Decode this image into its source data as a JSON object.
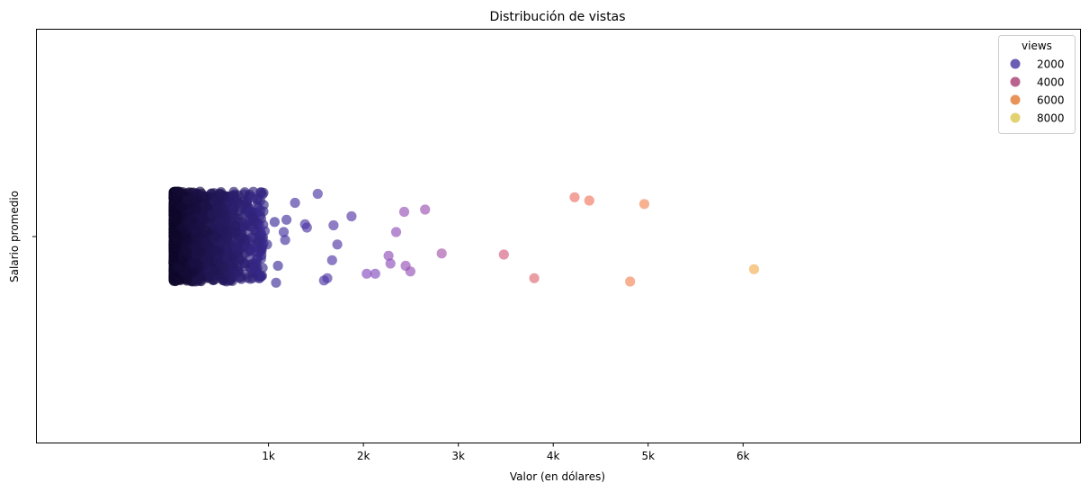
{
  "chart_data": {
    "type": "scatter",
    "title": "Distribución de vistas",
    "xlabel": "Valor (en dólares)",
    "ylabel": "Salario promedio",
    "xlim": [
      -1450,
      9550
    ],
    "x_ticks": [
      {
        "value": 1000,
        "label": "1k"
      },
      {
        "value": 2000,
        "label": "2k"
      },
      {
        "value": 3000,
        "label": "3k"
      },
      {
        "value": 4000,
        "label": "4k"
      },
      {
        "value": 5000,
        "label": "5k"
      },
      {
        "value": 6000,
        "label": "6k"
      }
    ],
    "y_category": "",
    "grid": false,
    "legend": {
      "title": "views",
      "placement": "top-right",
      "entries": [
        {
          "label": "2000",
          "color": "#6b5fb5"
        },
        {
          "label": "4000",
          "color": "#b9648f"
        },
        {
          "label": "6000",
          "color": "#e8935a"
        },
        {
          "label": "8000",
          "color": "#e3d272"
        }
      ]
    },
    "color_scale": {
      "name": "plasma-like",
      "domain": [
        0,
        8000
      ],
      "stops": [
        "#0d0624",
        "#3f2f9c",
        "#8a4fc0",
        "#d05a86",
        "#f47a5c",
        "#f2b04f",
        "#e8e07a"
      ]
    },
    "point_opacity": 0.65,
    "points": [
      {
        "x": 1518,
        "jitter": 0.38,
        "views": 1600
      },
      {
        "x": 1280,
        "jitter": 0.3,
        "views": 1500
      },
      {
        "x": 1875,
        "jitter": 0.18,
        "views": 1700
      },
      {
        "x": 1405,
        "jitter": 0.08,
        "views": 1550
      },
      {
        "x": 1385,
        "jitter": 0.11,
        "views": 1550
      },
      {
        "x": 1685,
        "jitter": 0.1,
        "views": 1650
      },
      {
        "x": 1725,
        "jitter": -0.07,
        "views": 1650
      },
      {
        "x": 1670,
        "jitter": -0.21,
        "views": 1650
      },
      {
        "x": 1620,
        "jitter": -0.37,
        "views": 1600
      },
      {
        "x": 1585,
        "jitter": -0.39,
        "views": 1600
      },
      {
        "x": 1190,
        "jitter": 0.15,
        "views": 1400
      },
      {
        "x": 1175,
        "jitter": -0.03,
        "views": 1400
      },
      {
        "x": 1160,
        "jitter": 0.04,
        "views": 1400
      },
      {
        "x": 1065,
        "jitter": 0.13,
        "views": 1300
      },
      {
        "x": 1100,
        "jitter": -0.26,
        "views": 1300
      },
      {
        "x": 1080,
        "jitter": -0.41,
        "views": 1300
      },
      {
        "x": 960,
        "jitter": 0.05,
        "views": 1200
      },
      {
        "x": 985,
        "jitter": -0.07,
        "views": 1200
      },
      {
        "x": 2345,
        "jitter": 0.04,
        "views": 2800
      },
      {
        "x": 2430,
        "jitter": 0.22,
        "views": 2900
      },
      {
        "x": 2650,
        "jitter": 0.24,
        "views": 3000
      },
      {
        "x": 2825,
        "jitter": -0.15,
        "views": 3200
      },
      {
        "x": 2265,
        "jitter": -0.17,
        "views": 2800
      },
      {
        "x": 2285,
        "jitter": -0.24,
        "views": 2800
      },
      {
        "x": 2035,
        "jitter": -0.33,
        "views": 2600
      },
      {
        "x": 2125,
        "jitter": -0.33,
        "views": 2600
      },
      {
        "x": 2445,
        "jitter": -0.26,
        "views": 2900
      },
      {
        "x": 2495,
        "jitter": -0.31,
        "views": 2900
      },
      {
        "x": 3480,
        "jitter": -0.16,
        "views": 4200
      },
      {
        "x": 3800,
        "jitter": -0.37,
        "views": 4600
      },
      {
        "x": 4225,
        "jitter": 0.35,
        "views": 5000
      },
      {
        "x": 4380,
        "jitter": 0.32,
        "views": 5200
      },
      {
        "x": 4960,
        "jitter": 0.29,
        "views": 5700
      },
      {
        "x": 4810,
        "jitter": -0.4,
        "views": 5600
      },
      {
        "x": 6115,
        "jitter": -0.29,
        "views": 6600
      }
    ]
  }
}
